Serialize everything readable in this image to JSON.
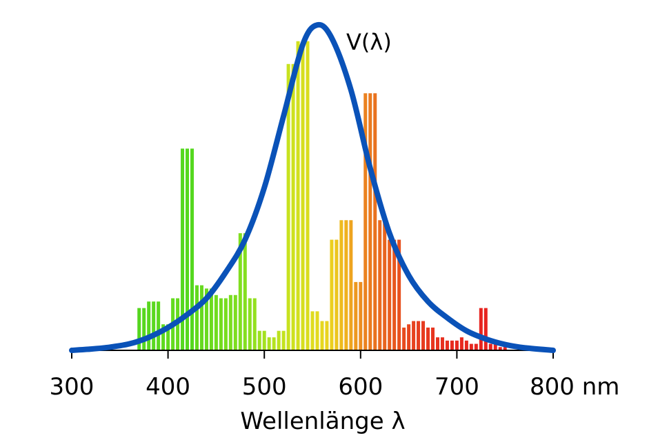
{
  "chart_data": {
    "type": "bar",
    "xlabel": "Wellenlänge λ",
    "xlim": [
      300,
      800
    ],
    "ylim": [
      0,
      1.03
    ],
    "x_unit": "nm",
    "x_ticks": [
      300,
      400,
      500,
      600,
      700,
      800
    ],
    "x_tick_labels": [
      "300",
      "400",
      "500",
      "600",
      "700",
      "800 nm"
    ],
    "bars": {
      "name": "",
      "wavelengths": [
        370,
        375,
        380,
        385,
        390,
        395,
        400,
        405,
        410,
        415,
        420,
        425,
        430,
        435,
        440,
        445,
        450,
        455,
        460,
        465,
        470,
        475,
        480,
        485,
        490,
        495,
        500,
        505,
        510,
        515,
        520,
        525,
        530,
        535,
        540,
        545,
        550,
        555,
        560,
        565,
        570,
        575,
        580,
        585,
        590,
        595,
        600,
        605,
        610,
        615,
        620,
        625,
        630,
        635,
        640,
        645,
        650,
        655,
        660,
        665,
        670,
        675,
        680,
        685,
        690,
        695,
        700,
        705,
        710,
        715,
        720,
        725,
        730,
        735,
        740,
        745,
        750
      ],
      "values": [
        0.13,
        0.13,
        0.15,
        0.15,
        0.15,
        0.08,
        0.08,
        0.16,
        0.16,
        0.62,
        0.62,
        0.62,
        0.2,
        0.2,
        0.19,
        0.19,
        0.17,
        0.16,
        0.16,
        0.17,
        0.17,
        0.36,
        0.36,
        0.16,
        0.16,
        0.06,
        0.06,
        0.04,
        0.04,
        0.06,
        0.06,
        0.88,
        0.88,
        0.95,
        0.95,
        0.95,
        0.12,
        0.12,
        0.09,
        0.09,
        0.34,
        0.34,
        0.4,
        0.4,
        0.4,
        0.21,
        0.21,
        0.79,
        0.79,
        0.79,
        0.4,
        0.4,
        0.34,
        0.34,
        0.34,
        0.07,
        0.08,
        0.09,
        0.09,
        0.09,
        0.07,
        0.07,
        0.04,
        0.04,
        0.03,
        0.03,
        0.03,
        0.04,
        0.03,
        0.02,
        0.02,
        0.13,
        0.13,
        0.02,
        0.02,
        0.01,
        0.01
      ],
      "colors": [
        "#55d61f",
        "#57d71f",
        "#58d71f",
        "#5ad81f",
        "#5bd81f",
        "#5fd91f",
        "#62da1f",
        "#64db1f",
        "#66db1f",
        "#55d81f",
        "#55d81f",
        "#55d81f",
        "#63d91f",
        "#66d91f",
        "#69da1f",
        "#6cdb1f",
        "#70dc1f",
        "#73dc1f",
        "#77dd1f",
        "#7add1f",
        "#7ddd1f",
        "#80de1f",
        "#84de1f",
        "#8cdf1f",
        "#94e01f",
        "#9ce01f",
        "#a4e11f",
        "#ace11f",
        "#b4e21f",
        "#bbe21f",
        "#c3e31f",
        "#c8e21f",
        "#cde11f",
        "#d2e01f",
        "#d6de1f",
        "#dadd1f",
        "#dfdc1f",
        "#e3da1f",
        "#e6d71f",
        "#e9d31f",
        "#ebcf1f",
        "#ecc51f",
        "#eebb1f",
        "#efb11f",
        "#eea41f",
        "#ed981f",
        "#ec8d1f",
        "#eb821f",
        "#ea7a1f",
        "#e9721f",
        "#e96a1f",
        "#e8641f",
        "#e85d1f",
        "#e7571f",
        "#e7511f",
        "#e74b1f",
        "#e7461f",
        "#e7421f",
        "#e73e1f",
        "#e73b1f",
        "#e7381f",
        "#e7351f",
        "#e7321f",
        "#e7301f",
        "#e72e1f",
        "#e72c1f",
        "#e72a1f",
        "#e7281f",
        "#e7271f",
        "#e7261f",
        "#e7251f",
        "#e7241f",
        "#e7231f",
        "#e7221f",
        "#e7221f",
        "#e7211f",
        "#e7211f"
      ]
    },
    "curve": {
      "name": "V(λ)",
      "color": "#0a52b8",
      "peak_nm": 555,
      "peak_value": 1.0,
      "points": [
        [
          300,
          0.0
        ],
        [
          320,
          0.004
        ],
        [
          340,
          0.01
        ],
        [
          360,
          0.02
        ],
        [
          380,
          0.04
        ],
        [
          400,
          0.07
        ],
        [
          420,
          0.11
        ],
        [
          440,
          0.16
        ],
        [
          460,
          0.24
        ],
        [
          480,
          0.34
        ],
        [
          500,
          0.5
        ],
        [
          520,
          0.72
        ],
        [
          540,
          0.94
        ],
        [
          555,
          1.0
        ],
        [
          570,
          0.96
        ],
        [
          590,
          0.8
        ],
        [
          610,
          0.56
        ],
        [
          630,
          0.36
        ],
        [
          650,
          0.23
        ],
        [
          670,
          0.15
        ],
        [
          690,
          0.1
        ],
        [
          710,
          0.06
        ],
        [
          730,
          0.035
        ],
        [
          750,
          0.018
        ],
        [
          770,
          0.008
        ],
        [
          800,
          0.0
        ]
      ]
    },
    "grid": false,
    "legend": "none"
  }
}
